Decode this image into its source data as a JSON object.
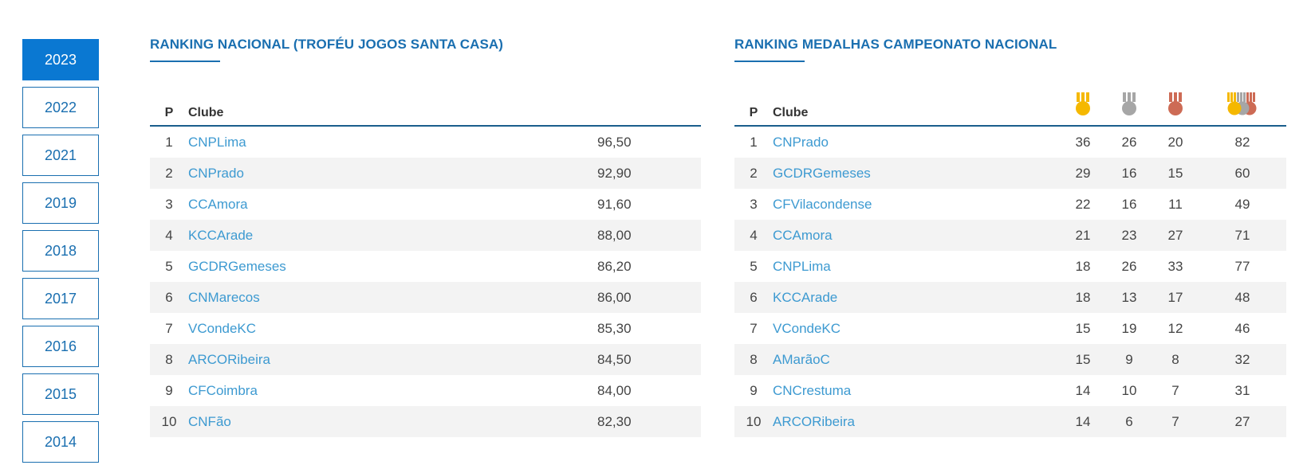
{
  "years": [
    {
      "label": "2023",
      "active": true
    },
    {
      "label": "2022"
    },
    {
      "label": "2021"
    },
    {
      "label": "2019"
    },
    {
      "label": "2018"
    },
    {
      "label": "2017"
    },
    {
      "label": "2016"
    },
    {
      "label": "2015"
    },
    {
      "label": "2014"
    }
  ],
  "national": {
    "title": "RANKING NACIONAL (TROFÉU JOGOS SANTA CASA)",
    "headers": {
      "pos": "P",
      "club": "Clube"
    },
    "rows": [
      {
        "pos": "1",
        "club": "CNPLima",
        "points": "96,50"
      },
      {
        "pos": "2",
        "club": "CNPrado",
        "points": "92,90"
      },
      {
        "pos": "3",
        "club": "CCAmora",
        "points": "91,60"
      },
      {
        "pos": "4",
        "club": "KCCArade",
        "points": "88,00"
      },
      {
        "pos": "5",
        "club": "GCDRGemeses",
        "points": "86,20"
      },
      {
        "pos": "6",
        "club": "CNMarecos",
        "points": "86,00"
      },
      {
        "pos": "7",
        "club": "VCondeKC",
        "points": "85,30"
      },
      {
        "pos": "8",
        "club": "ARCORibeira",
        "points": "84,50"
      },
      {
        "pos": "9",
        "club": "CFCoimbra",
        "points": "84,00"
      },
      {
        "pos": "10",
        "club": "CNFão",
        "points": "82,30"
      }
    ]
  },
  "medals": {
    "title": "RANKING MEDALHAS CAMPEONATO NACIONAL",
    "headers": {
      "pos": "P",
      "club": "Clube"
    },
    "icons": {
      "gold": "gold-medal-icon",
      "silver": "silver-medal-icon",
      "bronze": "bronze-medal-icon",
      "total": "medals-total-icon"
    },
    "colors": {
      "gold": "#f5b800",
      "silver": "#a6a6a6",
      "bronze": "#cd6b55",
      "accent": "#1a6fb0"
    },
    "rows": [
      {
        "pos": "1",
        "club": "CNPrado",
        "gold": "36",
        "silver": "26",
        "bronze": "20",
        "total": "82"
      },
      {
        "pos": "2",
        "club": "GCDRGemeses",
        "gold": "29",
        "silver": "16",
        "bronze": "15",
        "total": "60"
      },
      {
        "pos": "3",
        "club": "CFVilacondense",
        "gold": "22",
        "silver": "16",
        "bronze": "11",
        "total": "49"
      },
      {
        "pos": "4",
        "club": "CCAmora",
        "gold": "21",
        "silver": "23",
        "bronze": "27",
        "total": "71"
      },
      {
        "pos": "5",
        "club": "CNPLima",
        "gold": "18",
        "silver": "26",
        "bronze": "33",
        "total": "77"
      },
      {
        "pos": "6",
        "club": "KCCArade",
        "gold": "18",
        "silver": "13",
        "bronze": "17",
        "total": "48"
      },
      {
        "pos": "7",
        "club": "VCondeKC",
        "gold": "15",
        "silver": "19",
        "bronze": "12",
        "total": "46"
      },
      {
        "pos": "8",
        "club": "AMarãoC",
        "gold": "15",
        "silver": "9",
        "bronze": "8",
        "total": "32"
      },
      {
        "pos": "9",
        "club": "CNCrestuma",
        "gold": "14",
        "silver": "10",
        "bronze": "7",
        "total": "31"
      },
      {
        "pos": "10",
        "club": "ARCORibeira",
        "gold": "14",
        "silver": "6",
        "bronze": "7",
        "total": "27"
      }
    ]
  }
}
